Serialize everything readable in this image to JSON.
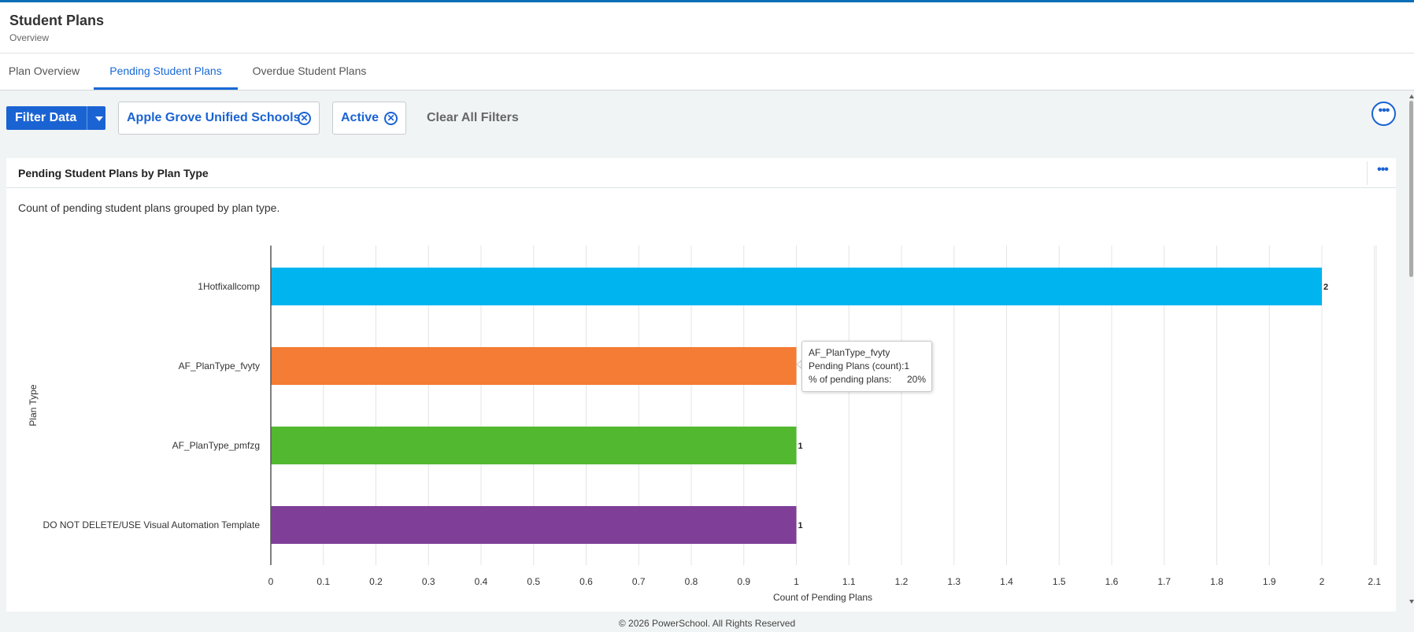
{
  "header": {
    "title": "Student Plans",
    "subtitle": "Overview"
  },
  "tabs": [
    {
      "label": "Plan Overview"
    },
    {
      "label": "Pending Student Plans"
    },
    {
      "label": "Overdue Student Plans"
    }
  ],
  "filter": {
    "button_label": "Filter Data",
    "chips": [
      {
        "label": "Apple Grove Unified Schools"
      },
      {
        "label": "Active"
      }
    ],
    "clear_label": "Clear All Filters"
  },
  "card": {
    "title": "Pending Student Plans by Plan Type",
    "description": "Count of pending student plans grouped by plan type."
  },
  "chart_data": {
    "type": "bar",
    "orientation": "horizontal",
    "categories": [
      "1Hotfixallcomp",
      "AF_PlanType_fvyty",
      "AF_PlanType_pmfzg",
      "DO NOT DELETE/USE Visual Automation Template"
    ],
    "values": [
      2,
      1,
      1,
      1
    ],
    "colors": [
      "#00b5ef",
      "#f47c34",
      "#52b830",
      "#7f3f98"
    ],
    "data_labels": [
      "2",
      "",
      "1",
      "1"
    ],
    "xlabel": "Count of Pending Plans",
    "ylabel": "Plan Type",
    "xlim": [
      0,
      2.1
    ],
    "xticks": [
      "0",
      "0.1",
      "0.2",
      "0.3",
      "0.4",
      "0.5",
      "0.6",
      "0.7",
      "0.8",
      "0.9",
      "1",
      "1.1",
      "1.2",
      "1.3",
      "1.4",
      "1.5",
      "1.6",
      "1.7",
      "1.8",
      "1.9",
      "2",
      "2.1"
    ],
    "grid": true
  },
  "tooltip": {
    "title": "AF_PlanType_fvyty",
    "line1": "Pending Plans (count):1",
    "line2_label": "% of pending plans:",
    "line2_value": "20%"
  },
  "footer": {
    "text": "© 2026 PowerSchool. All Rights Reserved"
  }
}
